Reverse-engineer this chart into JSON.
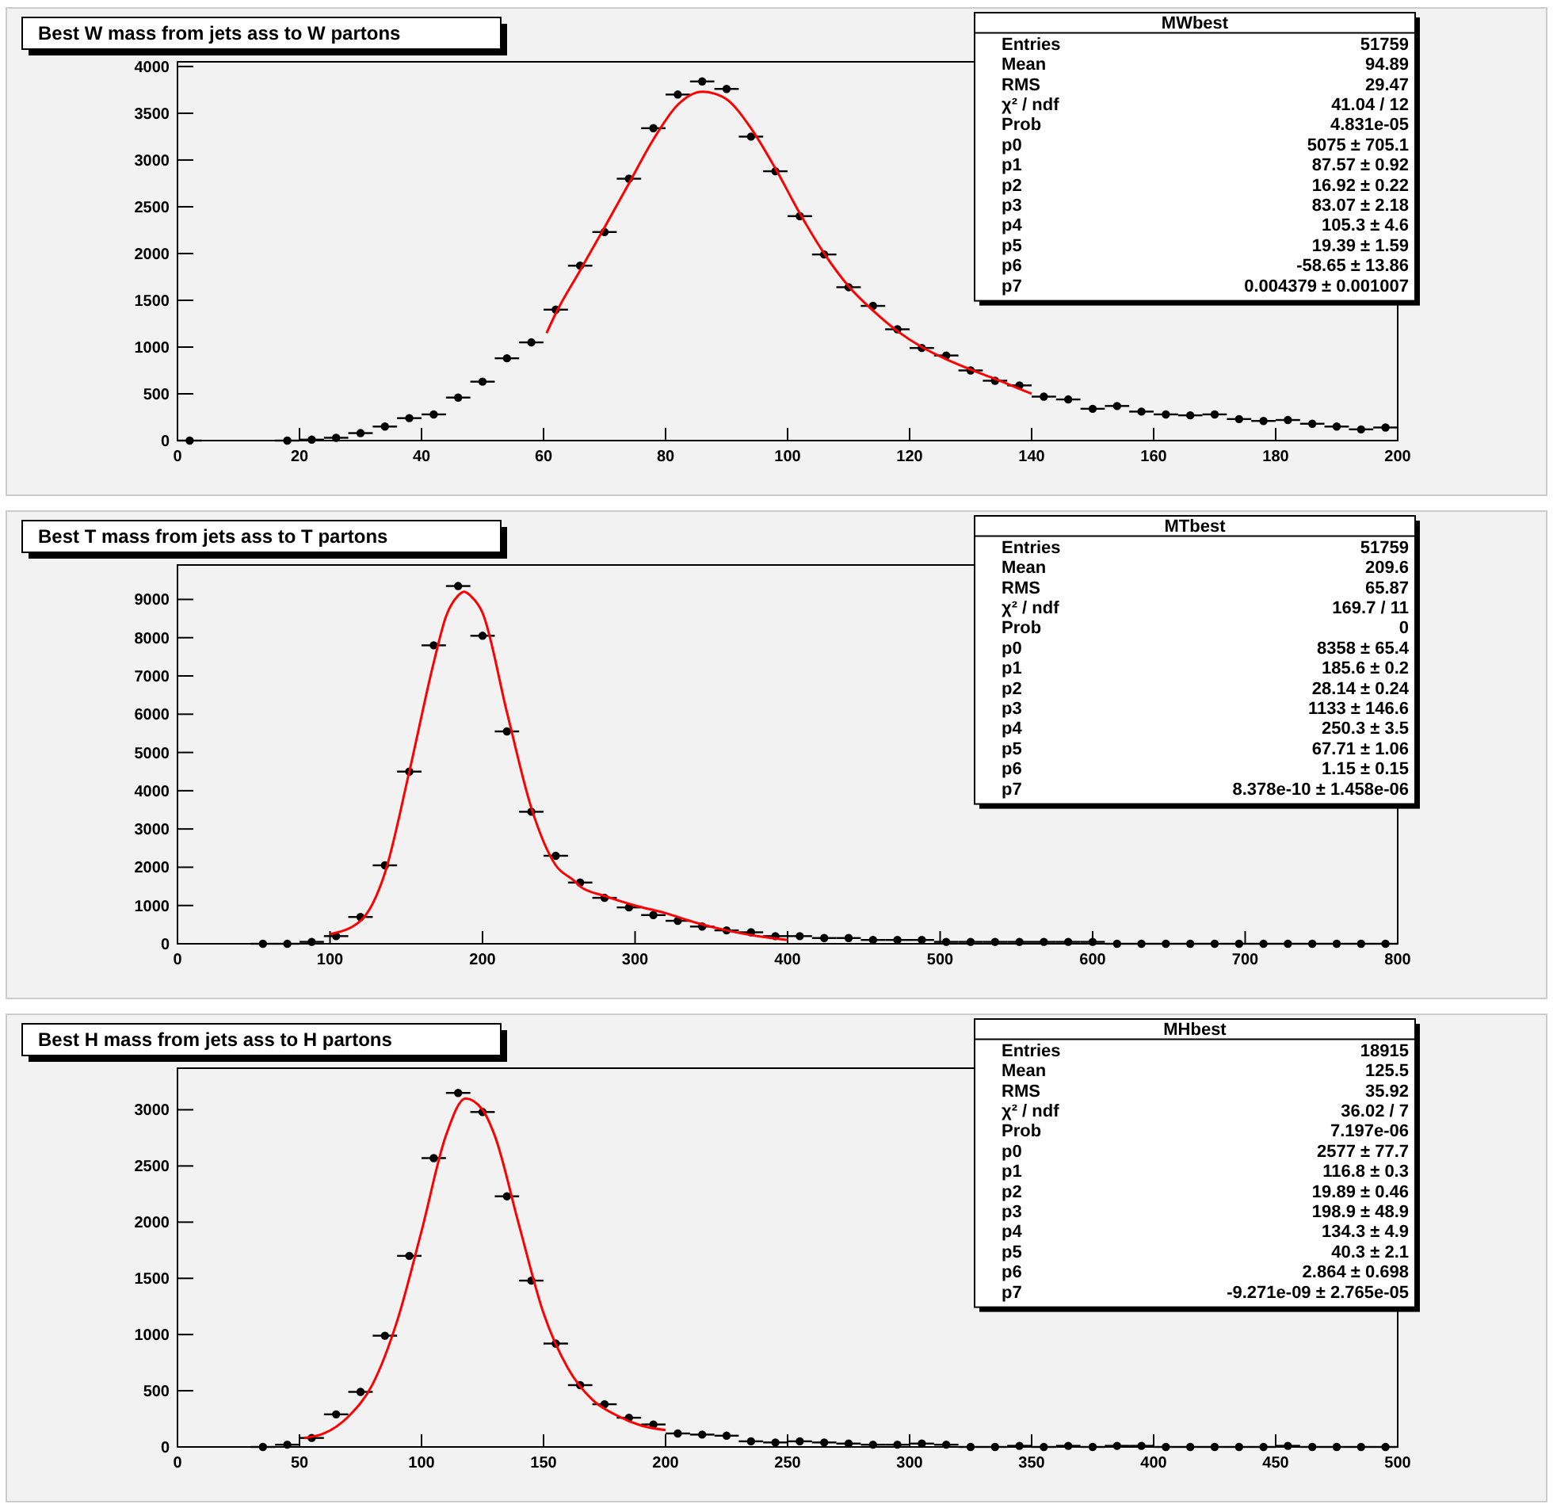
{
  "chart_data": [
    {
      "type": "scatter",
      "title": "Best W mass from jets ass to W partons",
      "annotations": [
        "MWbest",
        "Entries",
        "51759",
        "Mean",
        "94.89",
        "RMS",
        "29.47",
        "χ² / ndf",
        "41.04 / 12",
        "Prob",
        "4.831e-05",
        "p0",
        "5075 ± 705.1",
        "p1",
        "87.57 ± 0.92",
        "p2",
        "16.92 ± 0.22",
        "p3",
        "83.07 ± 2.18",
        "p4",
        "105.3 ± 4.6",
        "p5",
        "19.39 ± 1.59",
        "p6",
        "-58.65 ± 13.86",
        "p7",
        "0.004379 ± 0.001007"
      ],
      "xlim": [
        0,
        200
      ],
      "ylim": [
        0,
        4050
      ],
      "xticks": [
        0,
        20,
        40,
        60,
        80,
        100,
        120,
        140,
        160,
        180,
        200
      ],
      "yticks": [
        0,
        500,
        1000,
        1500,
        2000,
        2500,
        3000,
        3500,
        4000
      ],
      "series": [
        {
          "marker": "circle",
          "color": "#000000",
          "x": [
            2,
            18,
            22,
            26,
            30,
            34,
            38,
            42,
            46,
            50,
            54,
            58,
            62,
            66,
            70,
            74,
            78,
            82,
            86,
            90,
            94,
            98,
            102,
            106,
            110,
            114,
            118,
            122,
            126,
            130,
            134,
            138,
            142,
            146,
            150,
            154,
            158,
            162,
            166,
            170,
            174,
            178,
            182,
            186,
            190,
            194,
            198
          ],
          "values": [
            0,
            0,
            10,
            30,
            80,
            150,
            240,
            280,
            460,
            630,
            880,
            1050,
            1400,
            1870,
            2230,
            2800,
            3340,
            3700,
            3840,
            3760,
            3250,
            2880,
            2400,
            1990,
            1640,
            1440,
            1190,
            990,
            910,
            750,
            640,
            590,
            470,
            440,
            340,
            370,
            310,
            280,
            270,
            280,
            230,
            210,
            220,
            180,
            150,
            120,
            140
          ],
          "xerrors": [
            2,
            2,
            2,
            2,
            2,
            2,
            2,
            2,
            2,
            2,
            2,
            2,
            2,
            2,
            2,
            2,
            2,
            2,
            2,
            2,
            2,
            2,
            2,
            2,
            2,
            2,
            2,
            2,
            2,
            2,
            2,
            2,
            2,
            2,
            2,
            2,
            2,
            2,
            2,
            2,
            2,
            2,
            2,
            2,
            2,
            2,
            2
          ]
        },
        {
          "type": "line",
          "marker": "none",
          "color": "#ff0000",
          "x": [
            60.5,
            62,
            66,
            70,
            74,
            78,
            82,
            86,
            88,
            90,
            94,
            98,
            102,
            106,
            110,
            114,
            118,
            122,
            126,
            130,
            134,
            140
          ],
          "values": [
            1150,
            1360,
            1820,
            2280,
            2750,
            3220,
            3590,
            3730,
            3710,
            3650,
            3340,
            2910,
            2430,
            2000,
            1650,
            1390,
            1170,
            1000,
            870,
            760,
            660,
            500
          ]
        }
      ]
    },
    {
      "type": "scatter",
      "title": "Best T mass from jets ass to T partons",
      "annotations": [
        "MTbest",
        "Entries",
        "51759",
        "Mean",
        "209.6",
        "RMS",
        "65.87",
        "χ² / ndf",
        "169.7 / 11",
        "Prob",
        "0",
        "p0",
        "8358 ± 65.4",
        "p1",
        "185.6 ± 0.2",
        "p2",
        "28.14 ± 0.24",
        "p3",
        "1133 ± 146.6",
        "p4",
        "250.3 ± 3.5",
        "p5",
        "67.71 ± 1.06",
        "p6",
        "1.15 ± 0.15",
        "p7",
        "8.378e-10 ± 1.458e-06"
      ],
      "xlim": [
        0,
        800
      ],
      "ylim": [
        0,
        9900
      ],
      "xticks": [
        0,
        100,
        200,
        300,
        400,
        500,
        600,
        700,
        800
      ],
      "yticks": [
        0,
        1000,
        2000,
        3000,
        4000,
        5000,
        6000,
        7000,
        8000,
        9000
      ],
      "series": [
        {
          "marker": "circle",
          "color": "#000000",
          "x": [
            56,
            72,
            88,
            104,
            120,
            136,
            152,
            168,
            184,
            200,
            216,
            232,
            248,
            264,
            280,
            296,
            312,
            328,
            344,
            360,
            376,
            392,
            408,
            424,
            440,
            456,
            472,
            488,
            504,
            520,
            536,
            552,
            568,
            584,
            600,
            616,
            632,
            648,
            664,
            680,
            696,
            712,
            728,
            744,
            760,
            776,
            792
          ],
          "values": [
            0,
            0,
            50,
            200,
            700,
            2050,
            4500,
            7800,
            9350,
            8050,
            5550,
            3450,
            2300,
            1600,
            1200,
            950,
            750,
            600,
            450,
            350,
            300,
            200,
            200,
            150,
            150,
            100,
            100,
            100,
            50,
            50,
            50,
            50,
            50,
            50,
            50,
            0,
            0,
            0,
            0,
            0,
            0,
            0,
            0,
            0,
            0,
            0,
            0
          ],
          "xerrors": [
            8,
            8,
            8,
            8,
            8,
            8,
            8,
            8,
            8,
            8,
            8,
            8,
            8,
            8,
            8,
            8,
            8,
            8,
            8,
            8,
            8,
            8,
            8,
            8,
            8,
            8,
            8,
            8,
            8,
            8,
            8,
            8,
            8,
            8,
            8,
            8,
            8,
            8,
            8,
            8,
            8,
            8,
            8,
            8,
            8,
            8,
            8
          ]
        },
        {
          "type": "line",
          "marker": "none",
          "color": "#ff0000",
          "x": [
            100,
            120,
            136,
            152,
            168,
            176,
            184,
            188,
            192,
            200,
            216,
            232,
            248,
            260,
            264,
            280,
            300,
            320,
            340,
            360,
            380,
            400
          ],
          "values": [
            250,
            600,
            1850,
            4500,
            7350,
            8550,
            9100,
            9200,
            9100,
            8650,
            6050,
            3550,
            2050,
            1650,
            1500,
            1250,
            1000,
            800,
            550,
            350,
            200,
            100
          ]
        }
      ]
    },
    {
      "type": "scatter",
      "title": "Best H mass from jets ass to H partons",
      "annotations": [
        "MHbest",
        "Entries",
        "18915",
        "Mean",
        "125.5",
        "RMS",
        "35.92",
        "χ² / ndf",
        "36.02 / 7",
        "Prob",
        "7.197e-06",
        "p0",
        "2577 ± 77.7",
        "p1",
        "116.8 ± 0.3",
        "p2",
        "19.89 ± 0.46",
        "p3",
        "198.9 ± 48.9",
        "p4",
        "134.3 ± 4.9",
        "p5",
        "40.3 ± 2.1",
        "p6",
        "2.864 ± 0.698",
        "p7",
        "-9.271e-09 ± 2.765e-05"
      ],
      "xlim": [
        0,
        500
      ],
      "ylim": [
        0,
        3370
      ],
      "xticks": [
        0,
        50,
        100,
        150,
        200,
        250,
        300,
        350,
        400,
        450,
        500
      ],
      "yticks": [
        0,
        500,
        1000,
        1500,
        2000,
        2500,
        3000
      ],
      "series": [
        {
          "marker": "circle",
          "color": "#000000",
          "x": [
            35,
            45,
            55,
            65,
            75,
            85,
            95,
            105,
            115,
            125,
            135,
            145,
            155,
            165,
            175,
            185,
            195,
            205,
            215,
            225,
            235,
            245,
            255,
            265,
            275,
            285,
            295,
            305,
            315,
            325,
            335,
            345,
            355,
            365,
            375,
            385,
            395,
            405,
            415,
            425,
            435,
            445,
            455,
            465,
            475,
            485,
            495
          ],
          "values": [
            0,
            20,
            80,
            290,
            490,
            990,
            1700,
            2570,
            3150,
            2980,
            2230,
            1480,
            920,
            550,
            380,
            260,
            200,
            120,
            110,
            100,
            50,
            40,
            50,
            40,
            30,
            20,
            20,
            30,
            20,
            0,
            0,
            10,
            0,
            10,
            0,
            10,
            10,
            0,
            0,
            0,
            0,
            0,
            10,
            0,
            0,
            0,
            0
          ],
          "xerrors": [
            5,
            5,
            5,
            5,
            5,
            5,
            5,
            5,
            5,
            5,
            5,
            5,
            5,
            5,
            5,
            5,
            5,
            5,
            5,
            5,
            5,
            5,
            5,
            5,
            5,
            5,
            5,
            5,
            5,
            5,
            5,
            5,
            5,
            5,
            5,
            5,
            5,
            5,
            5,
            5,
            5,
            5,
            5,
            5,
            5,
            5,
            5
          ]
        },
        {
          "type": "line",
          "marker": "none",
          "color": "#ff0000",
          "x": [
            52,
            60,
            70,
            80,
            90,
            100,
            110,
            118,
            125,
            130,
            140,
            150,
            160,
            170,
            180,
            190,
            200
          ],
          "values": [
            80,
            120,
            270,
            560,
            1120,
            1920,
            2770,
            3100,
            3000,
            2770,
            1970,
            1190,
            700,
            420,
            280,
            190,
            150
          ]
        }
      ]
    }
  ]
}
